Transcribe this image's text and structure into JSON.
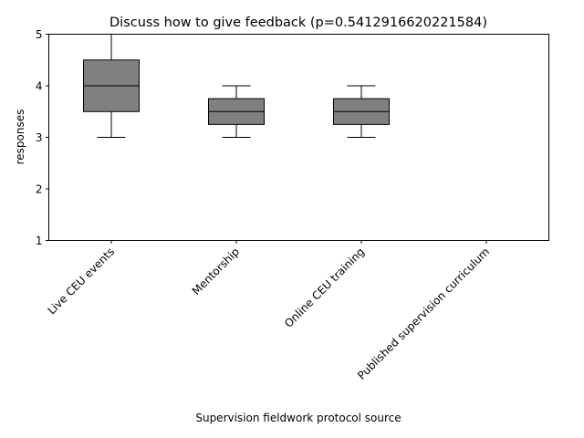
{
  "chart_data": {
    "type": "box",
    "title": "Discuss how to give feedback (p=0.5412916620221584)",
    "xlabel": "Supervision fieldwork protocol source",
    "ylabel": "responses",
    "ylim": [
      1,
      5
    ],
    "yticks": [
      "1",
      "2",
      "3",
      "4",
      "5"
    ],
    "grid": false,
    "box_color": "#808080",
    "categories": [
      "Live CEU events",
      "Mentorship",
      "Online CEU training",
      "Published supervision curriculum"
    ],
    "boxes": [
      {
        "whisker_low": 3,
        "q1": 3.5,
        "median": 4,
        "q3": 4.5,
        "whisker_high": 5
      },
      {
        "whisker_low": 3,
        "q1": 3.25,
        "median": 3.5,
        "q3": 3.75,
        "whisker_high": 4
      },
      {
        "whisker_low": 3,
        "q1": 3.25,
        "median": 3.5,
        "q3": 3.75,
        "whisker_high": 4
      },
      {
        "whisker_low": 5,
        "q1": 5,
        "median": 5,
        "q3": 5,
        "whisker_high": 5
      }
    ]
  }
}
